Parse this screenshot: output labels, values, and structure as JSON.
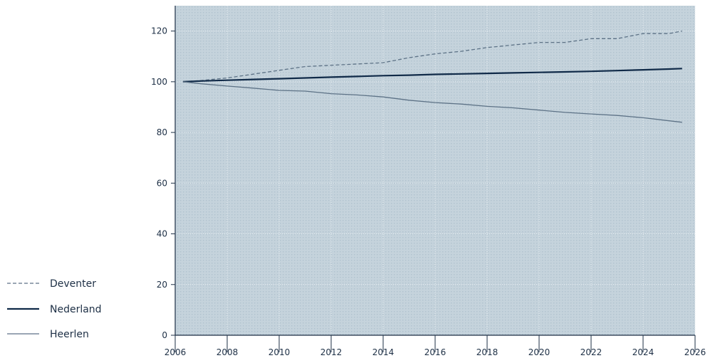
{
  "chart_data": {
    "type": "line",
    "title": "",
    "xlabel": "",
    "ylabel": "",
    "xlim": [
      2006,
      2026
    ],
    "ylim": [
      0,
      130
    ],
    "x_ticks": [
      2006,
      2008,
      2010,
      2012,
      2014,
      2016,
      2018,
      2020,
      2022,
      2024,
      2026
    ],
    "y_ticks": [
      0,
      20,
      40,
      60,
      80,
      100,
      120
    ],
    "x_tick_labels": [
      "2006",
      "2008",
      "2010",
      "2012",
      "2014",
      "2016",
      "2018",
      "2020",
      "2022",
      "2024",
      "2026"
    ],
    "y_tick_labels": [
      "0",
      "20",
      "40",
      "60",
      "80",
      "100",
      "120"
    ],
    "legend_position": "bottom-left, outside plot",
    "grid": true,
    "background_color": "#c5d3dc",
    "series": [
      {
        "name": "Deventer",
        "style": "dashed",
        "color": "#5d7286",
        "x": [
          2006.3,
          2007,
          2008,
          2009,
          2010,
          2011,
          2012,
          2013,
          2014,
          2015,
          2016,
          2017,
          2018,
          2019,
          2020,
          2021,
          2022,
          2023,
          2024,
          2025,
          2025.5
        ],
        "y": [
          100,
          100.5,
          101.5,
          103,
          104.5,
          106,
          106.5,
          107,
          107.5,
          109.5,
          111,
          112,
          113.5,
          114.5,
          115.5,
          115.5,
          117,
          117,
          119,
          119,
          120
        ]
      },
      {
        "name": "Nederland",
        "style": "solid",
        "color": "#102a48",
        "x": [
          2006.3,
          2007,
          2008,
          2009,
          2010,
          2011,
          2012,
          2013,
          2014,
          2015,
          2016,
          2017,
          2018,
          2019,
          2020,
          2021,
          2022,
          2023,
          2024,
          2025,
          2025.5
        ],
        "y": [
          100,
          100.3,
          100.6,
          100.9,
          101.2,
          101.5,
          101.8,
          102.1,
          102.4,
          102.6,
          102.9,
          103.1,
          103.3,
          103.5,
          103.7,
          103.9,
          104.1,
          104.4,
          104.7,
          105,
          105.2
        ]
      },
      {
        "name": "Heerlen",
        "style": "solid",
        "color": "#5d7286",
        "x": [
          2006.3,
          2007,
          2008,
          2009,
          2010,
          2011,
          2012,
          2013,
          2014,
          2015,
          2016,
          2017,
          2018,
          2019,
          2020,
          2021,
          2022,
          2023,
          2024,
          2025,
          2025.5
        ],
        "y": [
          100,
          99.2,
          98.3,
          97.5,
          96.6,
          96.3,
          95.3,
          94.8,
          94,
          92.7,
          91.8,
          91.2,
          90.3,
          89.7,
          88.8,
          87.9,
          87.3,
          86.7,
          85.8,
          84.6,
          84
        ]
      }
    ]
  }
}
